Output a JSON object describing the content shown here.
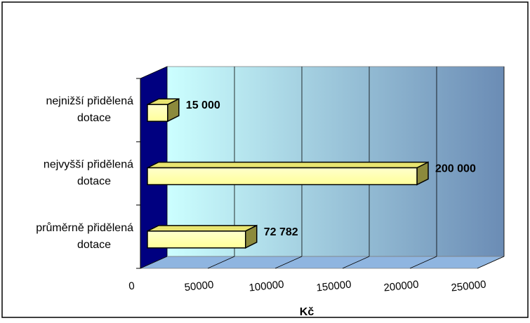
{
  "chart_data": {
    "type": "bar",
    "orientation": "horizontal",
    "style": "3d",
    "categories": [
      [
        "nejnižší přidělená",
        "dotace"
      ],
      [
        "nejvyšší přidělená",
        "dotace"
      ],
      [
        "průměrně přidělená",
        "dotace"
      ]
    ],
    "values": [
      15000,
      200000,
      72782
    ],
    "value_labels": [
      "15 000",
      "200 000",
      "72 782"
    ],
    "xlabel": "Kč",
    "xlim": [
      0,
      250000
    ],
    "xticks": [
      0,
      50000,
      100000,
      150000,
      200000,
      250000
    ],
    "xtick_labels": [
      "0",
      "50000",
      "100000",
      "150000",
      "200000",
      "250000"
    ],
    "grid": true,
    "legend": "none",
    "colors": {
      "bar_front": "#ffff99",
      "bar_top": "#e8e470",
      "bar_side": "#8c8a3c",
      "wall_left": "#ccffff",
      "wall_right": "#6b8cb5",
      "side_wall": "#000080",
      "floor": "#8fb5e0",
      "gridline": "#000000"
    }
  }
}
